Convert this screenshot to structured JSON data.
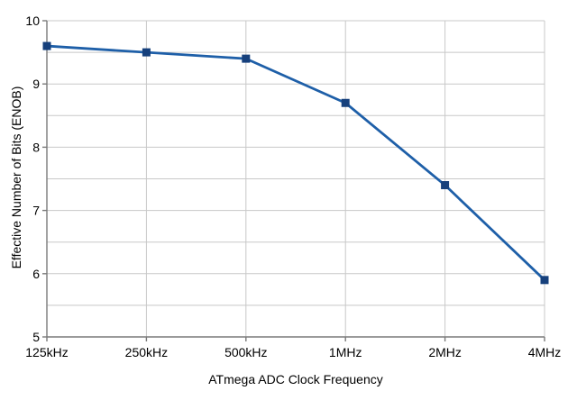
{
  "chart_data": {
    "type": "line",
    "title": "",
    "xlabel": "ATmega ADC Clock Frequency",
    "ylabel": "Effective Number of Bits (ENOB)",
    "categories": [
      "125kHz",
      "250kHz",
      "500kHz",
      "1MHz",
      "2MHz",
      "4MHz"
    ],
    "series": [
      {
        "name": "ENOB",
        "values": [
          9.6,
          9.5,
          9.4,
          8.7,
          7.4,
          5.9
        ]
      }
    ],
    "ylim": [
      5,
      10
    ],
    "y_ticks": [
      10,
      9,
      8,
      7,
      6,
      5
    ],
    "y_grid_step": 0.5,
    "grid": true,
    "legend_position": "none",
    "marker_shape": "square",
    "line_color": "#1e5fa8",
    "marker_color": "#16407c",
    "grid_color": "#c8c8c8",
    "axis_color": "#7a7a7a",
    "text_color": "#000000",
    "background_color": "#ffffff"
  }
}
